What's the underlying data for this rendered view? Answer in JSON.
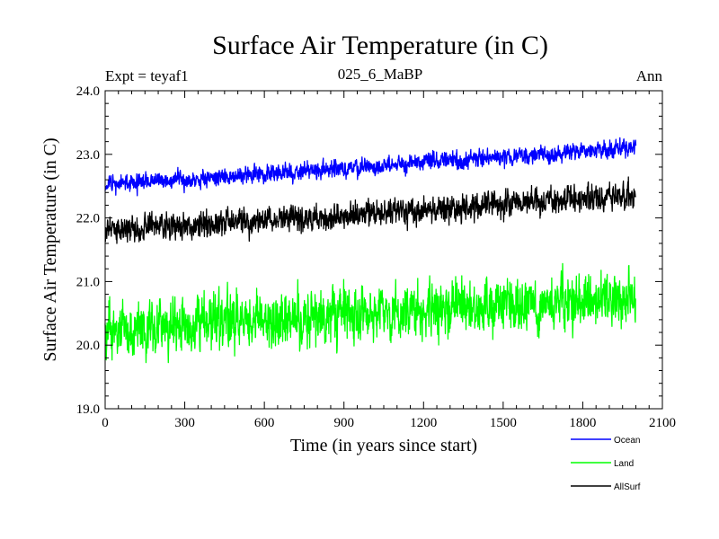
{
  "chart_data": {
    "type": "line",
    "title": "Surface Air Temperature (in C)",
    "subtitle": "025_6_MaBP",
    "left_label": "Expt = teyaf1",
    "right_label": "Ann",
    "xlabel": "Time (in years since start)",
    "ylabel": "Surface Air Temperature (in C)",
    "xlim": [
      0,
      2100
    ],
    "ylim": [
      19.0,
      24.0
    ],
    "xticks": [
      0,
      300,
      600,
      900,
      1200,
      1500,
      1800,
      2100
    ],
    "xtick_labels": [
      "0",
      "300",
      "600",
      "900",
      "1200",
      "1500",
      "1800",
      "2100"
    ],
    "yticks": [
      19.0,
      20.0,
      21.0,
      22.0,
      23.0,
      24.0
    ],
    "ytick_labels": [
      "19.0",
      "20.0",
      "21.0",
      "22.0",
      "23.0",
      "24.0"
    ],
    "legend_position": "bottom-right, outside plot",
    "series": [
      {
        "name": "Ocean",
        "color": "#0000ff",
        "x_start": 0,
        "x_end": 2000,
        "start_mean": 22.52,
        "end_mean": 23.1,
        "noise": 0.08,
        "seed": 11
      },
      {
        "name": "Land",
        "color": "#00ff00",
        "x_start": 0,
        "x_end": 2000,
        "start_mean": 20.25,
        "end_mean": 20.75,
        "noise": 0.24,
        "seed": 29
      },
      {
        "name": "AllSurf",
        "color": "#000000",
        "x_start": 0,
        "x_end": 2000,
        "start_mean": 21.8,
        "end_mean": 22.35,
        "noise": 0.12,
        "seed": 47
      }
    ]
  }
}
